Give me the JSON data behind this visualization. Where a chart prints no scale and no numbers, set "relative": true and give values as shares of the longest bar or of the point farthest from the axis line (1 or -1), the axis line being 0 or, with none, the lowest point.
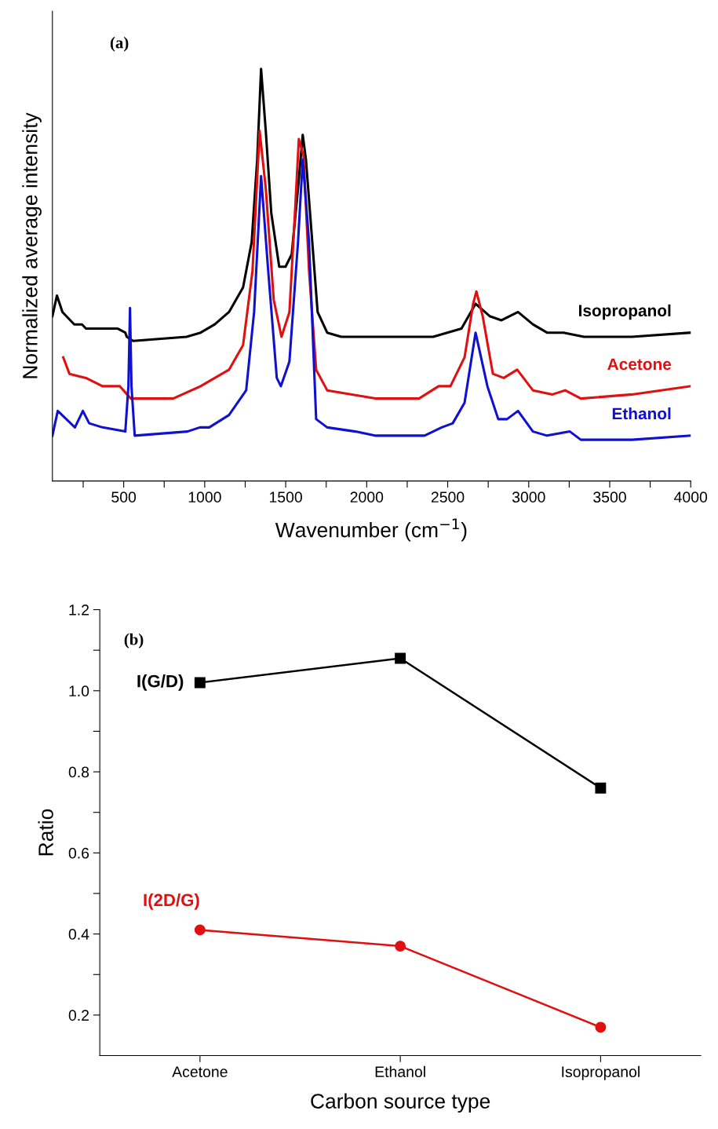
{
  "chart_data": [
    {
      "type": "line",
      "relative": true,
      "xlabel": "Wavenumber (cm$^{−1}$)",
      "ylabel": "Normalized average intensity",
      "annotations": [
        "(a)"
      ],
      "legend": false,
      "grid": false,
      "tick_labels": "x",
      "xlim": [
        60,
        4000
      ],
      "xticks": [
        {
          "value": 250,
          "label": null
        },
        500,
        {
          "value": 750,
          "label": null
        },
        1000,
        {
          "value": 1250,
          "label": null
        },
        1500,
        {
          "value": 1750,
          "label": null
        },
        2000,
        {
          "value": 2250,
          "label": null
        },
        2500,
        {
          "value": 2750,
          "label": null
        },
        3000,
        {
          "value": 3250,
          "label": null
        },
        3500,
        {
          "value": 3750,
          "label": null
        },
        4000
      ],
      "series": [
        {
          "name": "Isopropanol",
          "color": "#000000",
          "x": [
            60,
            88,
            122,
            195,
            243,
            267,
            461,
            510,
            519,
            558,
            888,
            975,
            1062,
            1150,
            1237,
            1290,
            1324,
            1348,
            1377,
            1411,
            1460,
            1499,
            1537,
            1576,
            1605,
            1625,
            1664,
            1697,
            1756,
            1843,
            2153,
            2410,
            2585,
            2672,
            2759,
            2832,
            2934,
            3026,
            3113,
            3215,
            3341,
            3637,
            4000
          ],
          "values": [
            0.4,
            0.45,
            0.41,
            0.38,
            0.38,
            0.37,
            0.37,
            0.36,
            0.35,
            0.34,
            0.35,
            0.36,
            0.38,
            0.41,
            0.47,
            0.58,
            0.78,
            1.0,
            0.85,
            0.65,
            0.52,
            0.52,
            0.55,
            0.71,
            0.84,
            0.78,
            0.58,
            0.41,
            0.36,
            0.35,
            0.35,
            0.35,
            0.37,
            0.43,
            0.4,
            0.39,
            0.41,
            0.38,
            0.36,
            0.36,
            0.35,
            0.35,
            0.36
          ]
        },
        {
          "name": "Acetone",
          "color": "#e01010",
          "x": [
            127,
            165,
            267,
            369,
            476,
            544,
            805,
            975,
            1150,
            1237,
            1295,
            1339,
            1377,
            1426,
            1474,
            1523,
            1557,
            1581,
            1610,
            1644,
            1688,
            1756,
            2061,
            2323,
            2444,
            2517,
            2604,
            2657,
            2677,
            2716,
            2779,
            2846,
            2929,
            3026,
            3147,
            3225,
            3322,
            3637,
            4000
          ],
          "values": [
            0.3,
            0.26,
            0.25,
            0.23,
            0.23,
            0.2,
            0.2,
            0.23,
            0.27,
            0.33,
            0.51,
            0.85,
            0.71,
            0.44,
            0.35,
            0.41,
            0.65,
            0.83,
            0.79,
            0.51,
            0.27,
            0.22,
            0.2,
            0.2,
            0.23,
            0.23,
            0.3,
            0.43,
            0.46,
            0.4,
            0.26,
            0.25,
            0.27,
            0.22,
            0.21,
            0.22,
            0.2,
            0.21,
            0.23
          ]
        },
        {
          "name": "Ethanol",
          "color": "#1010d0",
          "x": [
            60,
            93,
            199,
            248,
            287,
            369,
            510,
            529,
            539,
            548,
            568,
            893,
            970,
            1028,
            1150,
            1256,
            1305,
            1348,
            1392,
            1445,
            1470,
            1523,
            1576,
            1605,
            1644,
            1688,
            1756,
            1930,
            2051,
            2357,
            2463,
            2531,
            2604,
            2672,
            2745,
            2812,
            2866,
            2934,
            3026,
            3113,
            3254,
            3322,
            3637,
            4000
          ],
          "values": [
            0.11,
            0.17,
            0.13,
            0.17,
            0.14,
            0.13,
            0.12,
            0.23,
            0.42,
            0.23,
            0.11,
            0.12,
            0.13,
            0.13,
            0.16,
            0.22,
            0.41,
            0.74,
            0.51,
            0.25,
            0.23,
            0.29,
            0.58,
            0.78,
            0.58,
            0.15,
            0.13,
            0.12,
            0.11,
            0.11,
            0.13,
            0.14,
            0.19,
            0.36,
            0.23,
            0.15,
            0.15,
            0.17,
            0.12,
            0.11,
            0.12,
            0.1,
            0.1,
            0.11
          ]
        }
      ]
    },
    {
      "type": "line",
      "xlabel": "Carbon source type",
      "ylabel": "Ratio",
      "annotations": [
        "(b)"
      ],
      "legend": false,
      "grid": false,
      "categories": [
        "Acetone",
        "Ethanol",
        "Isopropanol"
      ],
      "ylim": [
        0.1,
        1.2
      ],
      "yticks": [
        0.2,
        {
          "value": 0.3,
          "label": null
        },
        0.4,
        {
          "value": 0.5,
          "label": null
        },
        0.6,
        {
          "value": 0.7,
          "label": null
        },
        0.8,
        {
          "value": 0.9,
          "label": null
        },
        {
          "value": 1.0,
          "label": "1.0"
        },
        {
          "value": 1.1,
          "label": null
        },
        1.2
      ],
      "series": [
        {
          "name": "I(G/D)",
          "color": "#000000",
          "marker": "square",
          "values": [
            1.02,
            1.08,
            0.76
          ]
        },
        {
          "name": "I(2D/G)",
          "color": "#e01010",
          "marker": "circle",
          "values": [
            0.41,
            0.37,
            0.17
          ]
        }
      ]
    }
  ]
}
